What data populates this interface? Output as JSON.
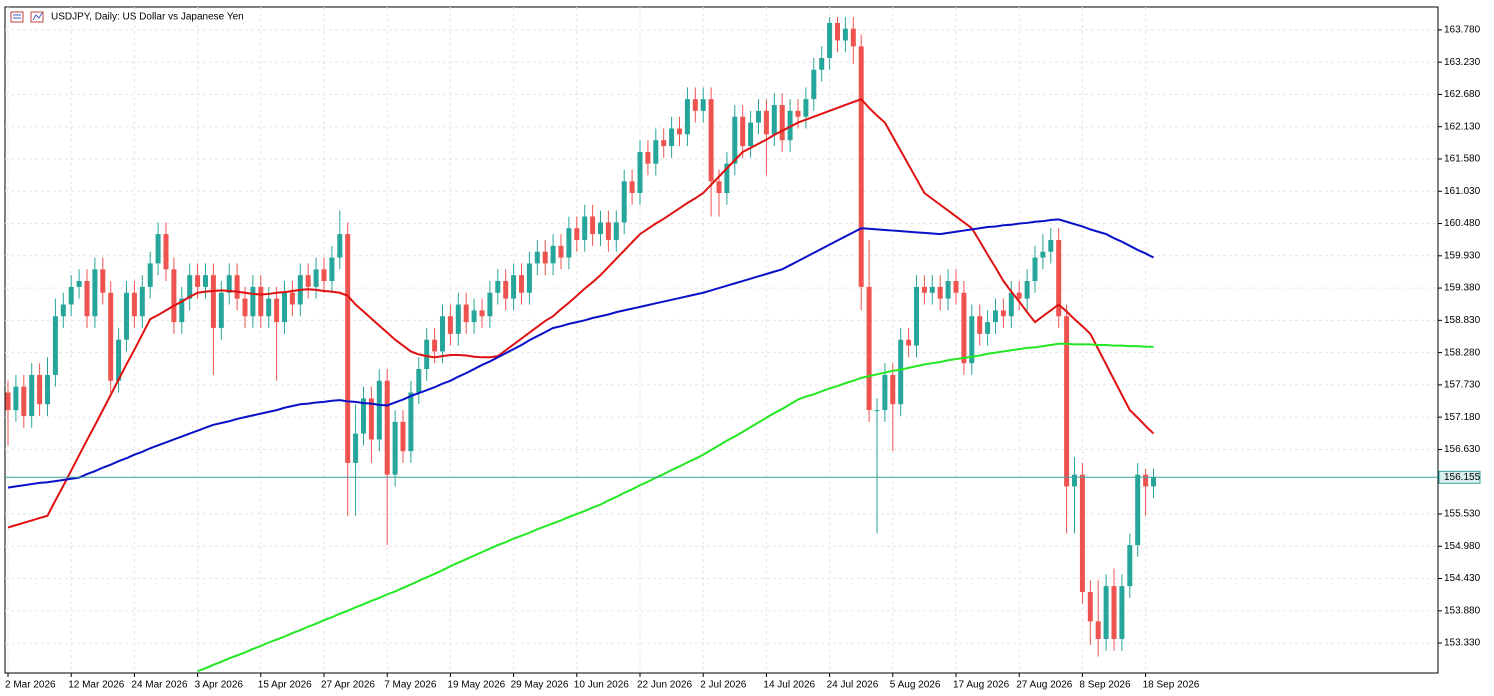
{
  "chart_data": {
    "type": "candlestick",
    "title": "USDJPY, Daily:  US Dollar vs Japanese Yen",
    "categories": [
      "2 Mar 2026",
      null,
      null,
      null,
      null,
      null,
      null,
      null,
      "12 Mar 2026",
      null,
      null,
      null,
      null,
      null,
      null,
      null,
      "24 Mar 2026",
      null,
      null,
      null,
      null,
      null,
      null,
      null,
      "3 Apr 2026",
      null,
      null,
      null,
      null,
      null,
      null,
      null,
      "15 Apr 2026",
      null,
      null,
      null,
      null,
      null,
      null,
      null,
      "27 Apr 2026",
      null,
      null,
      null,
      null,
      null,
      null,
      null,
      "7 May 2026",
      null,
      null,
      null,
      null,
      null,
      null,
      null,
      "19 May 2026",
      null,
      null,
      null,
      null,
      null,
      null,
      null,
      "29 May 2026",
      null,
      null,
      null,
      null,
      null,
      null,
      null,
      "10 Jun 2026",
      null,
      null,
      null,
      null,
      null,
      null,
      null,
      "22 Jun 2026",
      null,
      null,
      null,
      null,
      null,
      null,
      null,
      "2 Jul 2026",
      null,
      null,
      null,
      null,
      null,
      null,
      null,
      "14 Jul 2026",
      null,
      null,
      null,
      null,
      null,
      null,
      null,
      "24 Jul 2026",
      null,
      null,
      null,
      null,
      null,
      null,
      null,
      "5 Aug 2026",
      null,
      null,
      null,
      null,
      null,
      null,
      null,
      "17 Aug 2026",
      null,
      null,
      null,
      null,
      null,
      null,
      null,
      "27 Aug 2026",
      null,
      null,
      null,
      null,
      null,
      null,
      null,
      "8 Sep 2026",
      null,
      null,
      null,
      null,
      null,
      null,
      null,
      "18 Sep 2026",
      null
    ],
    "open": [
      157.6,
      157.3,
      157.7,
      157.2,
      157.9,
      157.4,
      157.9,
      158.9,
      159.1,
      159.4,
      159.5,
      158.9,
      159.7,
      159.3,
      157.8,
      158.5,
      159.3,
      158.9,
      159.4,
      159.8,
      160.3,
      159.7,
      158.8,
      159.2,
      159.6,
      159.4,
      159.6,
      158.7,
      159.3,
      159.6,
      159.2,
      158.9,
      159.4,
      158.9,
      159.2,
      158.8,
      159.3,
      159.1,
      159.6,
      159.4,
      159.7,
      159.5,
      159.9,
      160.3,
      156.4,
      156.9,
      157.5,
      156.8,
      157.8,
      156.2,
      157.1,
      156.6,
      157.6,
      158.0,
      158.5,
      158.3,
      158.9,
      158.6,
      159.1,
      158.8,
      159.0,
      158.9,
      159.3,
      159.5,
      159.2,
      159.6,
      159.3,
      159.8,
      160.0,
      159.8,
      160.1,
      159.9,
      160.4,
      160.2,
      160.6,
      160.3,
      160.5,
      160.2,
      160.5,
      161.2,
      161.0,
      161.7,
      161.5,
      161.9,
      161.8,
      162.1,
      162.0,
      162.6,
      162.4,
      162.6,
      161.2,
      161.0,
      161.5,
      162.3,
      161.8,
      162.2,
      162.4,
      162.0,
      162.5,
      161.9,
      162.4,
      162.3,
      162.6,
      163.1,
      163.3,
      163.9,
      163.6,
      163.8,
      163.5,
      159.4,
      157.3,
      157.3,
      157.9,
      157.4,
      158.5,
      158.4,
      159.4,
      159.3,
      159.4,
      159.2,
      159.5,
      159.3,
      158.1,
      158.9,
      158.6,
      158.8,
      159.0,
      158.9,
      159.3,
      159.2,
      159.5,
      159.9,
      160.0,
      160.2,
      158.9,
      156.0,
      156.2,
      154.2,
      153.7,
      153.4,
      154.3,
      153.4,
      154.3,
      155.0,
      156.2,
      156.0
    ],
    "high": [
      157.8,
      157.9,
      157.9,
      158.1,
      158.1,
      158.2,
      159.2,
      159.3,
      159.6,
      159.7,
      159.7,
      159.9,
      159.9,
      159.5,
      158.7,
      159.5,
      159.5,
      159.6,
      160.0,
      160.5,
      160.5,
      159.9,
      159.4,
      159.8,
      159.8,
      159.8,
      159.8,
      159.5,
      159.8,
      159.8,
      159.4,
      159.6,
      159.6,
      159.4,
      159.4,
      159.5,
      159.5,
      159.8,
      159.8,
      159.9,
      159.9,
      160.1,
      160.7,
      160.5,
      157.4,
      157.7,
      157.7,
      158.0,
      158.0,
      157.3,
      157.3,
      157.8,
      158.2,
      158.7,
      158.7,
      159.1,
      159.1,
      159.3,
      159.3,
      159.2,
      159.2,
      159.5,
      159.7,
      159.7,
      159.8,
      159.8,
      160.0,
      160.2,
      160.2,
      160.3,
      160.3,
      160.6,
      160.6,
      160.8,
      160.8,
      160.7,
      160.7,
      160.7,
      161.4,
      161.4,
      161.9,
      161.9,
      162.1,
      162.1,
      162.3,
      162.3,
      162.8,
      162.8,
      162.8,
      162.8,
      161.4,
      161.7,
      162.5,
      162.5,
      162.4,
      162.6,
      162.6,
      162.7,
      162.7,
      162.6,
      162.6,
      162.8,
      163.3,
      163.5,
      164.0,
      164.0,
      164.0,
      164.0,
      163.7,
      160.2,
      157.5,
      158.1,
      158.1,
      158.7,
      158.7,
      159.6,
      159.6,
      159.6,
      159.6,
      159.7,
      159.7,
      159.5,
      159.1,
      159.1,
      159.0,
      159.2,
      159.2,
      159.5,
      159.5,
      159.7,
      160.1,
      160.3,
      160.4,
      160.4,
      159.1,
      156.5,
      156.4,
      154.4,
      154.4,
      154.5,
      154.6,
      154.5,
      155.2,
      156.4,
      156.3,
      156.3
    ],
    "low": [
      156.7,
      157.1,
      157.0,
      157.0,
      157.2,
      157.2,
      157.7,
      158.7,
      158.9,
      159.2,
      158.7,
      158.7,
      159.1,
      157.6,
      157.6,
      158.3,
      158.7,
      158.7,
      159.2,
      159.6,
      159.5,
      158.6,
      158.6,
      159.0,
      159.2,
      159.2,
      157.9,
      158.5,
      159.1,
      159.0,
      158.7,
      158.7,
      158.7,
      158.7,
      157.8,
      158.6,
      158.9,
      158.9,
      159.2,
      159.2,
      159.3,
      159.3,
      159.7,
      155.5,
      155.5,
      156.7,
      156.4,
      156.6,
      155.0,
      156.0,
      156.4,
      156.4,
      157.4,
      157.8,
      158.1,
      158.1,
      158.4,
      158.4,
      158.6,
      158.6,
      158.7,
      158.7,
      159.1,
      159.0,
      159.0,
      159.1,
      159.1,
      159.6,
      159.6,
      159.6,
      159.7,
      159.7,
      160.0,
      160.0,
      160.1,
      160.1,
      160.0,
      160.0,
      160.3,
      160.8,
      160.8,
      161.3,
      161.3,
      161.6,
      161.6,
      161.8,
      161.8,
      162.2,
      162.2,
      160.6,
      160.6,
      160.8,
      161.3,
      161.6,
      161.6,
      162.0,
      161.3,
      161.8,
      161.7,
      161.7,
      162.1,
      162.1,
      162.4,
      162.9,
      163.1,
      163.4,
      163.4,
      163.2,
      159.0,
      157.1,
      155.2,
      157.1,
      156.6,
      157.2,
      158.2,
      158.2,
      159.1,
      159.1,
      159.0,
      159.0,
      159.1,
      157.9,
      157.9,
      158.4,
      158.4,
      158.6,
      158.7,
      158.7,
      159.0,
      159.0,
      159.3,
      159.7,
      159.8,
      158.7,
      155.2,
      155.2,
      154.0,
      153.3,
      153.1,
      153.2,
      153.2,
      153.2,
      154.1,
      154.8,
      155.5,
      155.8
    ],
    "close": [
      157.3,
      157.7,
      157.2,
      157.9,
      157.4,
      157.9,
      158.9,
      159.1,
      159.4,
      159.5,
      158.9,
      159.7,
      159.3,
      157.8,
      158.5,
      159.3,
      158.9,
      159.4,
      159.8,
      160.3,
      159.7,
      158.8,
      159.2,
      159.6,
      159.4,
      159.6,
      158.7,
      159.3,
      159.6,
      159.2,
      158.9,
      159.4,
      158.9,
      159.2,
      158.8,
      159.3,
      159.1,
      159.6,
      159.4,
      159.7,
      159.5,
      159.9,
      160.3,
      156.4,
      156.9,
      157.5,
      156.8,
      157.8,
      156.2,
      157.1,
      156.6,
      157.6,
      158.0,
      158.5,
      158.3,
      158.9,
      158.6,
      159.1,
      158.8,
      159.0,
      158.9,
      159.3,
      159.5,
      159.2,
      159.6,
      159.3,
      159.8,
      160.0,
      159.8,
      160.1,
      159.9,
      160.4,
      160.2,
      160.6,
      160.3,
      160.5,
      160.2,
      160.5,
      161.2,
      161.0,
      161.7,
      161.5,
      161.9,
      161.8,
      162.1,
      162.0,
      162.6,
      162.4,
      162.6,
      161.2,
      161.0,
      161.5,
      162.3,
      161.8,
      162.2,
      162.4,
      162.0,
      162.5,
      161.9,
      162.4,
      162.3,
      162.6,
      163.1,
      163.3,
      163.9,
      163.6,
      163.8,
      163.5,
      159.4,
      157.3,
      157.3,
      157.9,
      157.4,
      158.5,
      158.4,
      159.4,
      159.3,
      159.4,
      159.2,
      159.5,
      159.3,
      158.1,
      158.9,
      158.6,
      158.8,
      159.0,
      158.9,
      159.3,
      159.2,
      159.5,
      159.9,
      160.0,
      160.2,
      158.9,
      156.0,
      156.2,
      154.2,
      153.7,
      153.4,
      154.3,
      153.4,
      154.3,
      155.0,
      156.2,
      156.0,
      156.155
    ],
    "up_color": "#26a69a",
    "down_color": "#ef5350",
    "moving_averages": [
      {
        "color": "#e01010",
        "values": [
          155.3,
          155.34,
          155.38,
          155.42,
          155.46,
          155.5,
          155.76,
          156.01,
          156.27,
          156.53,
          156.79,
          157.04,
          157.3,
          157.56,
          157.82,
          158.08,
          158.33,
          158.59,
          158.85,
          158.92,
          159.0,
          159.08,
          159.15,
          159.23,
          159.3,
          159.32,
          159.33,
          159.34,
          159.33,
          159.32,
          159.3,
          159.28,
          159.27,
          159.28,
          159.3,
          159.31,
          159.33,
          159.35,
          159.36,
          159.35,
          159.33,
          159.32,
          159.3,
          159.25,
          159.1,
          158.98,
          158.86,
          158.74,
          158.62,
          158.5,
          158.4,
          158.3,
          158.25,
          158.22,
          158.2,
          158.22,
          158.24,
          158.24,
          158.23,
          158.21,
          158.2,
          158.2,
          158.22,
          158.32,
          158.42,
          158.52,
          158.62,
          158.72,
          158.82,
          158.9,
          159.02,
          159.13,
          159.25,
          159.37,
          159.48,
          159.6,
          159.74,
          159.88,
          160.02,
          160.16,
          160.3,
          160.39,
          160.48,
          160.56,
          160.65,
          160.74,
          160.83,
          160.91,
          161.0,
          161.14,
          161.28,
          161.42,
          161.56,
          161.7,
          161.77,
          161.84,
          161.91,
          161.99,
          162.06,
          162.13,
          162.2,
          162.25,
          162.3,
          162.35,
          162.4,
          162.45,
          162.5,
          162.55,
          162.6,
          162.45,
          162.32,
          162.2,
          161.96,
          161.72,
          161.48,
          161.24,
          161.0,
          160.9,
          160.8,
          160.7,
          160.6,
          160.5,
          160.4,
          160.18,
          159.95,
          159.73,
          159.5,
          159.32,
          159.15,
          158.97,
          158.8,
          158.9,
          159.0,
          159.1,
          158.98,
          158.85,
          158.73,
          158.6,
          158.34,
          158.08,
          157.82,
          157.56,
          157.3,
          157.17,
          157.03,
          156.9
        ]
      },
      {
        "color": "#0a10c8",
        "values": [
          155.98,
          156.0,
          156.02,
          156.04,
          156.06,
          156.07,
          156.09,
          156.11,
          156.13,
          156.15,
          156.21,
          156.26,
          156.32,
          156.37,
          156.43,
          156.48,
          156.54,
          156.59,
          156.65,
          156.7,
          156.75,
          156.8,
          156.85,
          156.9,
          156.95,
          157.0,
          157.05,
          157.08,
          157.11,
          157.15,
          157.18,
          157.21,
          157.24,
          157.27,
          157.3,
          157.34,
          157.37,
          157.4,
          157.41,
          157.43,
          157.44,
          157.46,
          157.47,
          157.45,
          157.44,
          157.42,
          157.41,
          157.39,
          157.38,
          157.43,
          157.48,
          157.54,
          157.59,
          157.64,
          157.69,
          157.75,
          157.8,
          157.87,
          157.93,
          158.0,
          158.07,
          158.13,
          158.2,
          158.27,
          158.34,
          158.41,
          158.49,
          158.56,
          158.63,
          158.7,
          158.73,
          158.77,
          158.8,
          158.83,
          158.87,
          158.9,
          158.93,
          158.97,
          159.0,
          159.03,
          159.06,
          159.09,
          159.12,
          159.15,
          159.18,
          159.21,
          159.24,
          159.27,
          159.3,
          159.34,
          159.38,
          159.42,
          159.46,
          159.5,
          159.54,
          159.58,
          159.62,
          159.66,
          159.7,
          159.77,
          159.84,
          159.91,
          159.98,
          160.05,
          160.12,
          160.19,
          160.26,
          160.33,
          160.4,
          160.39,
          160.38,
          160.37,
          160.36,
          160.35,
          160.34,
          160.33,
          160.32,
          160.31,
          160.3,
          160.32,
          160.34,
          160.36,
          160.38,
          160.4,
          160.42,
          160.43,
          160.45,
          160.46,
          160.48,
          160.49,
          160.51,
          160.52,
          160.54,
          160.55,
          160.51,
          160.47,
          160.43,
          160.38,
          160.34,
          160.3,
          160.23,
          160.17,
          160.1,
          160.03,
          159.97,
          159.9
        ]
      },
      {
        "color": "#22e822",
        "values": [
          null,
          null,
          null,
          null,
          null,
          null,
          null,
          null,
          null,
          null,
          null,
          null,
          null,
          null,
          null,
          null,
          null,
          null,
          null,
          null,
          null,
          null,
          null,
          null,
          152.85,
          152.9,
          152.96,
          153.01,
          153.07,
          153.12,
          153.17,
          153.23,
          153.28,
          153.34,
          153.39,
          153.44,
          153.5,
          153.55,
          153.61,
          153.66,
          153.72,
          153.77,
          153.83,
          153.88,
          153.94,
          153.99,
          154.05,
          154.1,
          154.16,
          154.21,
          154.27,
          154.33,
          154.39,
          154.45,
          154.51,
          154.57,
          154.64,
          154.7,
          154.76,
          154.82,
          154.88,
          154.94,
          155.0,
          155.05,
          155.11,
          155.16,
          155.21,
          155.27,
          155.32,
          155.37,
          155.42,
          155.48,
          155.53,
          155.58,
          155.64,
          155.69,
          155.76,
          155.82,
          155.89,
          155.95,
          156.02,
          156.08,
          156.15,
          156.21,
          156.28,
          156.34,
          156.41,
          156.47,
          156.54,
          156.62,
          156.7,
          156.78,
          156.85,
          156.93,
          157.01,
          157.09,
          157.17,
          157.25,
          157.32,
          157.4,
          157.48,
          157.53,
          157.57,
          157.62,
          157.67,
          157.71,
          157.76,
          157.8,
          157.85,
          157.88,
          157.91,
          157.94,
          157.97,
          157.99,
          158.02,
          158.05,
          158.08,
          158.1,
          158.12,
          158.15,
          158.17,
          158.19,
          158.21,
          158.23,
          158.26,
          158.28,
          158.3,
          158.32,
          158.34,
          158.36,
          158.37,
          158.39,
          158.41,
          158.43,
          158.43,
          158.42,
          158.42,
          158.42,
          158.41,
          158.41,
          158.4,
          158.4,
          158.39,
          158.39,
          158.38,
          158.38
        ]
      }
    ],
    "last_price": 156.155,
    "last_price_color": "#3aa3a3",
    "ylim": [
      152.82,
      164.17
    ],
    "yticks": [
      {
        "value": 153.33,
        "label": "153.330"
      },
      {
        "value": 153.88,
        "label": "153.880"
      },
      {
        "value": 154.43,
        "label": "154.430"
      },
      {
        "value": 154.98,
        "label": "154.980"
      },
      {
        "value": 155.53,
        "label": "155.530"
      },
      {
        "value": 156.63,
        "label": "156.630"
      },
      {
        "value": 157.18,
        "label": "157.180"
      },
      {
        "value": 157.73,
        "label": "157.730"
      },
      {
        "value": 158.28,
        "label": "158.280"
      },
      {
        "value": 158.83,
        "label": "158.830"
      },
      {
        "value": 159.38,
        "label": "159.380"
      },
      {
        "value": 159.93,
        "label": "159.930"
      },
      {
        "value": 160.48,
        "label": "160.480"
      },
      {
        "value": 161.03,
        "label": "161.030"
      },
      {
        "value": 161.58,
        "label": "161.580"
      },
      {
        "value": 162.13,
        "label": "162.130"
      },
      {
        "value": 162.68,
        "label": "162.680"
      },
      {
        "value": 163.23,
        "label": "163.230"
      },
      {
        "value": 163.78,
        "label": "163.780"
      }
    ],
    "grid": true
  }
}
